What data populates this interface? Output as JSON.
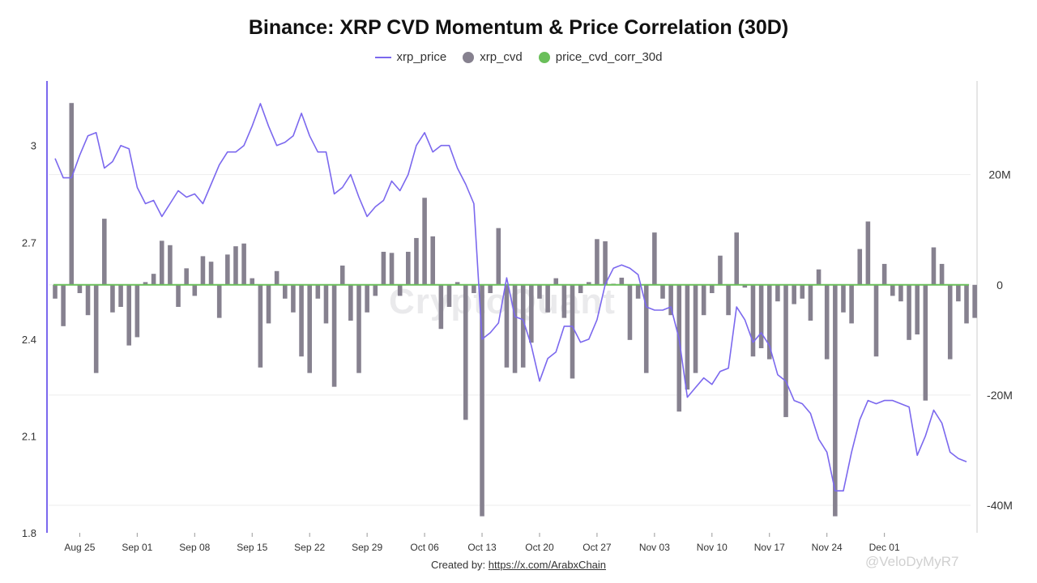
{
  "chart_data": {
    "type": "line",
    "title": "Binance: XRP CVD Momentum & Price Correlation (30D)",
    "legend": [
      {
        "name": "xrp_price",
        "kind": "line",
        "color": "#7b68ee"
      },
      {
        "name": "xrp_cvd",
        "kind": "bar",
        "color": "#86818f"
      },
      {
        "name": "price_cvd_corr_30d",
        "kind": "line",
        "color": "#5cb85c"
      }
    ],
    "x_ticks": [
      "Aug 25",
      "Sep 01",
      "Sep 08",
      "Sep 15",
      "Sep 22",
      "Sep 29",
      "Oct 06",
      "Oct 13",
      "Oct 20",
      "Oct 27",
      "Nov 03",
      "Nov 10",
      "Nov 17",
      "Nov 24",
      "Dec 01"
    ],
    "y_left_ticks": [
      "3",
      "2.7",
      "2.4",
      "2.1",
      "1.8"
    ],
    "y_right_ticks": [
      "20M",
      "0",
      "-20M",
      "-40M"
    ],
    "ylim_left": [
      1.8,
      3.2
    ],
    "ylim_right": [
      -45,
      37
    ],
    "xrp_price": [
      2.96,
      2.9,
      2.9,
      2.97,
      3.03,
      3.04,
      2.93,
      2.95,
      3.0,
      2.99,
      2.87,
      2.82,
      2.83,
      2.78,
      2.82,
      2.86,
      2.84,
      2.85,
      2.82,
      2.88,
      2.94,
      2.98,
      2.98,
      3.0,
      3.06,
      3.13,
      3.06,
      3.0,
      3.01,
      3.03,
      3.1,
      3.03,
      2.98,
      2.98,
      2.85,
      2.87,
      2.91,
      2.84,
      2.78,
      2.81,
      2.83,
      2.89,
      2.86,
      2.91,
      3.0,
      3.04,
      2.98,
      3.0,
      3.0,
      2.93,
      2.88,
      2.82,
      2.4,
      2.42,
      2.45,
      2.59,
      2.47,
      2.46,
      2.38,
      2.27,
      2.34,
      2.36,
      2.44,
      2.44,
      2.39,
      2.4,
      2.46,
      2.57,
      2.62,
      2.63,
      2.62,
      2.6,
      2.5,
      2.49,
      2.49,
      2.5,
      2.4,
      2.22,
      2.25,
      2.28,
      2.26,
      2.3,
      2.31,
      2.5,
      2.46,
      2.39,
      2.42,
      2.38,
      2.29,
      2.27,
      2.21,
      2.2,
      2.17,
      2.09,
      2.05,
      1.93,
      1.93,
      2.05,
      2.15,
      2.21,
      2.2,
      2.21,
      2.21,
      2.2,
      2.19,
      2.04,
      2.1,
      2.18,
      2.14,
      2.05,
      2.03,
      2.02
    ],
    "xrp_cvd": [
      -2.5,
      -7.5,
      33,
      -1.5,
      -5.5,
      -16,
      12,
      -5,
      -4,
      -11,
      -9.5,
      0.5,
      2,
      8,
      7.2,
      -4,
      3,
      -2,
      5.2,
      4.2,
      -6,
      5.5,
      7,
      7.5,
      1.2,
      -15,
      -7,
      2.5,
      -2.5,
      -5,
      -13,
      -16,
      -2.5,
      -7,
      -18.5,
      3.5,
      -6.5,
      -16,
      -5,
      -2,
      6,
      5.8,
      -2,
      6,
      8.5,
      15.8,
      8.8,
      -8,
      -4,
      0.5,
      -24.5,
      -1.5,
      -42,
      -1.5,
      10.3,
      -15,
      -16,
      -15,
      -10.5,
      -2.5,
      -5,
      1.2,
      -6,
      -17,
      -1.5,
      0.5,
      8.3,
      7.9,
      0.2,
      1.3,
      -10,
      -2.5,
      -16,
      9.5,
      -2.5,
      -5.5,
      -23,
      -19,
      -16,
      -5.5,
      -1.5,
      5.3,
      -5.5,
      9.5,
      -0.5,
      -13,
      -11.5,
      -13.5,
      -3,
      -24,
      -3.5,
      -2.5,
      -6.5,
      2.8,
      -13.5,
      -42,
      -5,
      -7,
      6.5,
      11.5,
      -13,
      3.8,
      -2,
      -3,
      -10,
      -9,
      -21,
      6.8,
      3.8,
      -13.5,
      -3,
      -7,
      -6
    ],
    "price_cvd_corr_30d": 0
  },
  "footer": {
    "label": "Created by:",
    "link": "https://x.com/ArabxChain"
  },
  "watermark": "CryptoQuant",
  "credit": "@VeloDyMyR7"
}
